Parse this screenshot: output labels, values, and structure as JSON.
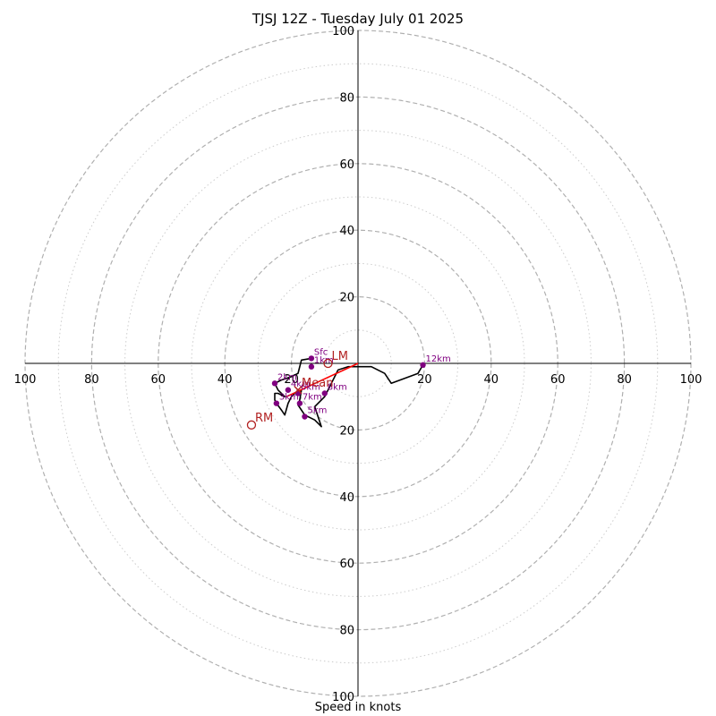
{
  "title": "TJSJ 12Z - Tuesday July 01 2025",
  "chart_data": {
    "type": "scatter",
    "subtype": "hodograph",
    "title": "TJSJ 12Z - Tuesday July 01 2025",
    "xlabel": "Speed in knots",
    "ylabel": "",
    "xlim": [
      -100,
      100
    ],
    "ylim": [
      -100,
      100
    ],
    "major_rings": [
      20,
      40,
      60,
      80,
      100
    ],
    "minor_rings": [
      10,
      30,
      50,
      70,
      90
    ],
    "tick_labels": [
      "100",
      "80",
      "60",
      "40",
      "20"
    ],
    "colors": {
      "hodograph": "#000000",
      "height_points": "#800080",
      "storm_motion": "#b22222",
      "shear_vector": "#ff0000",
      "major_ring": "#b0b0b0",
      "minor_ring": "#cccccc"
    },
    "hodograph_trace": [
      [
        -14,
        1.5
      ],
      [
        -17,
        1
      ],
      [
        -17.5,
        -1
      ],
      [
        -18,
        -3
      ],
      [
        -20,
        -4
      ],
      [
        -23,
        -5
      ],
      [
        -25,
        -6
      ],
      [
        -24,
        -8
      ],
      [
        -22,
        -10
      ],
      [
        -24,
        -9
      ],
      [
        -25,
        -9
      ],
      [
        -25,
        -11
      ],
      [
        -24.5,
        -12
      ],
      [
        -23,
        -14
      ],
      [
        -22,
        -15.5
      ],
      [
        -21,
        -12
      ],
      [
        -20,
        -10
      ],
      [
        -19,
        -9
      ],
      [
        -18,
        -8.5
      ],
      [
        -17,
        -8
      ],
      [
        -17.5,
        -11
      ],
      [
        -18,
        -12.5
      ],
      [
        -16,
        -15.5
      ],
      [
        -13,
        -17
      ],
      [
        -11,
        -19
      ],
      [
        -13,
        -13
      ],
      [
        -10,
        -10
      ],
      [
        -9,
        -8
      ],
      [
        -6,
        -2
      ],
      [
        -3,
        -1
      ],
      [
        0,
        -1
      ],
      [
        4,
        -1
      ],
      [
        8,
        -3
      ],
      [
        10,
        -6
      ],
      [
        18,
        -3
      ],
      [
        19.5,
        -0.5
      ]
    ],
    "height_points": [
      {
        "label": "Sfc",
        "x": -14,
        "y": 1.5
      },
      {
        "label": "1km",
        "x": -14,
        "y": -1
      },
      {
        "label": "2km",
        "x": -25,
        "y": -6
      },
      {
        "label": "3km",
        "x": -24.5,
        "y": -12
      },
      {
        "label": "4km",
        "x": -21,
        "y": -8
      },
      {
        "label": "5km",
        "x": -16,
        "y": -16
      },
      {
        "label": "6km",
        "x": -18,
        "y": -9
      },
      {
        "label": "7km",
        "x": -17.5,
        "y": -12
      },
      {
        "label": "8km",
        "x": -10,
        "y": -9
      },
      {
        "label": "12km",
        "x": 19.5,
        "y": -0.5
      }
    ],
    "storm_motion": [
      {
        "label": "LM",
        "x": -9,
        "y": 0
      },
      {
        "label": "RM",
        "x": -32,
        "y": -18.5
      },
      {
        "label": "Mean",
        "x": -18,
        "y": -8
      }
    ],
    "shear_vector": {
      "from": [
        0,
        0
      ],
      "to": [
        -21.5,
        -10
      ]
    }
  }
}
